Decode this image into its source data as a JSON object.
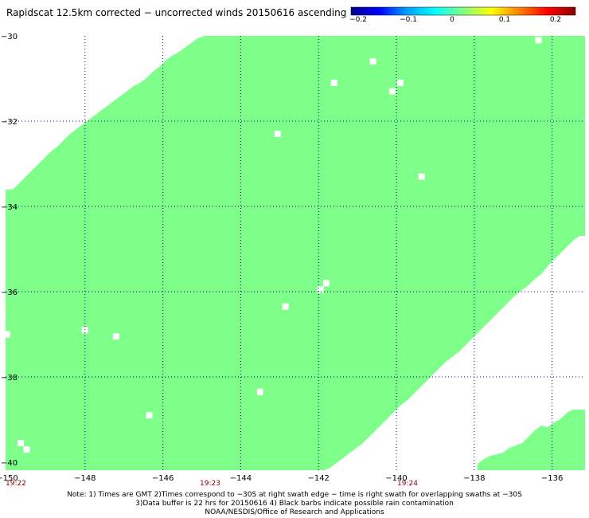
{
  "title": "Rapidscat 12.5km corrected − uncorrected winds 20150616 ascending",
  "colorbar": {
    "tick_labels": [
      "−0.2",
      "−0.1",
      "0",
      "0.1",
      "0.2"
    ],
    "range": [
      -0.2,
      0.2
    ],
    "colors": [
      "#00008c",
      "#0000ff",
      "#00a0ff",
      "#00ffff",
      "#80ff80",
      "#ffff00",
      "#ff8000",
      "#ff0000",
      "#8b0000"
    ]
  },
  "colors": {
    "data_fill": "#7dff8a",
    "background": "#ffffff",
    "grid": "#000080",
    "time_label": "#8b0000"
  },
  "map": {
    "lon_range": [
      -150,
      -135
    ],
    "lat_range": [
      -40,
      -30
    ],
    "x_tick_labels": [
      "−150",
      "−148",
      "−146",
      "−144",
      "−142",
      "−140",
      "−138",
      "−136"
    ],
    "y_tick_labels": [
      "−30",
      "−32",
      "−34",
      "−36",
      "−38",
      "−40"
    ],
    "time_labels": [
      "19:22",
      "19:23",
      "19:24"
    ],
    "missing_cells": [
      {
        "lon": -136.35,
        "lat": -30.1
      },
      {
        "lon": -140.6,
        "lat": -30.6
      },
      {
        "lon": -141.6,
        "lat": -31.1
      },
      {
        "lon": -139.9,
        "lat": -31.1
      },
      {
        "lon": -140.1,
        "lat": -31.3
      },
      {
        "lon": -143.05,
        "lat": -32.3
      },
      {
        "lon": -139.35,
        "lat": -33.3
      },
      {
        "lon": -141.8,
        "lat": -35.8
      },
      {
        "lon": -141.95,
        "lat": -35.95
      },
      {
        "lon": -142.85,
        "lat": -36.35
      },
      {
        "lon": -148.0,
        "lat": -36.9
      },
      {
        "lon": -147.2,
        "lat": -37.05
      },
      {
        "lon": -143.5,
        "lat": -38.35
      },
      {
        "lon": -146.35,
        "lat": -38.9
      },
      {
        "lon": -149.65,
        "lat": -39.55
      },
      {
        "lon": -149.5,
        "lat": -39.7
      },
      {
        "lon": -150.0,
        "lat": -37.0
      }
    ]
  },
  "footer": {
    "note_line1": "Note: 1) Times are GMT 2)Times correspond to −30S at right swath edge − time is right swath for overlapping swaths at −30S",
    "note_line2": "3)Data buffer is 22 hrs for 20150616 4) Black barbs indicate possible rain contamination",
    "credit": "NOAA/NESDIS/Office of Research and Applications"
  }
}
